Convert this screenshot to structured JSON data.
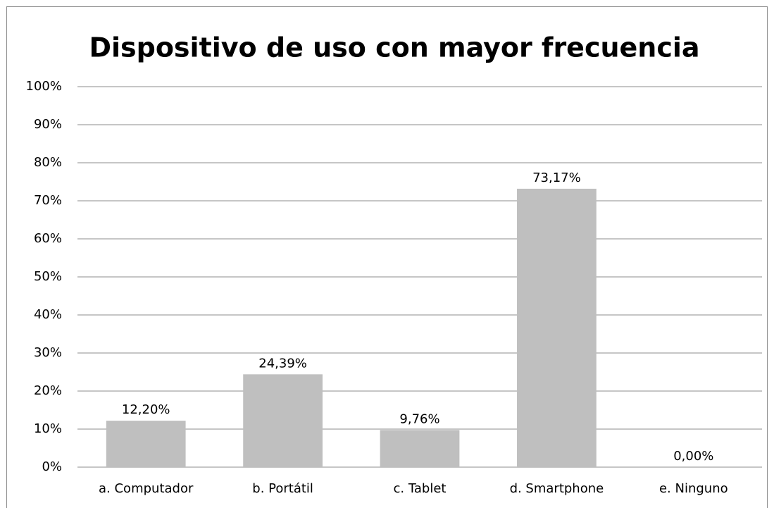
{
  "chart_data": {
    "type": "bar",
    "title": "Dispositivo de uso con mayor frecuencia",
    "categories": [
      "a. Computador",
      "b. Portátil",
      "c. Tablet",
      "d. Smartphone",
      "e. Ninguno"
    ],
    "values": [
      12.2,
      24.39,
      9.76,
      73.17,
      0.0
    ],
    "value_labels": [
      "12,20%",
      "24,39%",
      "9,76%",
      "73,17%",
      "0,00%"
    ],
    "color": "#bfbfbf",
    "ylim": [
      0,
      100
    ],
    "yticks": [
      {
        "value": 0,
        "label": "0%"
      },
      {
        "value": 10,
        "label": "10%"
      },
      {
        "value": 20,
        "label": "20%"
      },
      {
        "value": 30,
        "label": "30%"
      },
      {
        "value": 40,
        "label": "40%"
      },
      {
        "value": 50,
        "label": "50%"
      },
      {
        "value": 60,
        "label": "60%"
      },
      {
        "value": 70,
        "label": "70%"
      },
      {
        "value": 80,
        "label": "80%"
      },
      {
        "value": 90,
        "label": "90%"
      },
      {
        "value": 100,
        "label": "100%"
      }
    ],
    "grid": true
  }
}
